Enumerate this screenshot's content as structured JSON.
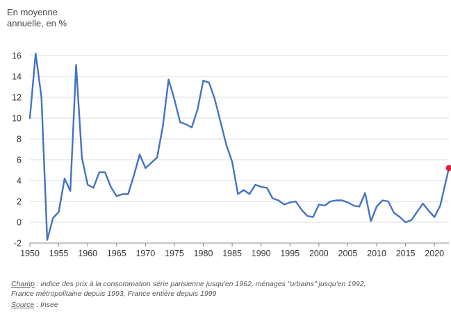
{
  "chart_data": {
    "type": "line",
    "ylabel_lines": [
      "En moyenne",
      "annuelle, en %"
    ],
    "xlim": [
      1950,
      2022.5
    ],
    "ylim": [
      -2,
      16
    ],
    "yticks": [
      -2,
      0,
      2,
      4,
      6,
      8,
      10,
      12,
      14,
      16
    ],
    "xticks": [
      1950,
      1955,
      1960,
      1965,
      1970,
      1975,
      1980,
      1985,
      1990,
      1995,
      2000,
      2005,
      2010,
      2015,
      2020
    ],
    "grid": true,
    "color": "#4472c4",
    "highlight_color": "#e0203a",
    "series": [
      {
        "x": [
          1950,
          1951,
          1952,
          1953,
          1954,
          1955,
          1956,
          1957,
          1958,
          1959,
          1960,
          1961,
          1962,
          1963,
          1964,
          1965,
          1966,
          1967,
          1968,
          1969,
          1970,
          1971,
          1972,
          1973,
          1974,
          1975,
          1976,
          1977,
          1978,
          1979,
          1980,
          1981,
          1982,
          1983,
          1984,
          1985,
          1986,
          1987,
          1988,
          1989,
          1990,
          1991,
          1992,
          1993,
          1994,
          1995,
          1996,
          1997,
          1998,
          1999,
          2000,
          2001,
          2002,
          2003,
          2004,
          2005,
          2006,
          2007,
          2008,
          2009,
          2010,
          2011,
          2012,
          2013,
          2014,
          2015,
          2016,
          2017,
          2018,
          2019,
          2020,
          2021,
          2022.5
        ],
        "y": [
          10.0,
          16.2,
          12.0,
          -1.7,
          0.4,
          1.0,
          4.2,
          3.0,
          15.1,
          6.2,
          3.6,
          3.3,
          4.8,
          4.8,
          3.4,
          2.5,
          2.7,
          2.7,
          4.5,
          6.5,
          5.2,
          5.7,
          6.2,
          9.2,
          13.7,
          11.8,
          9.6,
          9.4,
          9.1,
          10.8,
          13.6,
          13.4,
          11.8,
          9.6,
          7.4,
          5.8,
          2.7,
          3.1,
          2.7,
          3.6,
          3.4,
          3.3,
          2.3,
          2.1,
          1.7,
          1.9,
          2.0,
          1.2,
          0.6,
          0.5,
          1.7,
          1.6,
          2.0,
          2.1,
          2.1,
          1.9,
          1.6,
          1.5,
          2.8,
          0.1,
          1.5,
          2.1,
          2.0,
          0.9,
          0.5,
          0.0,
          0.2,
          1.0,
          1.8,
          1.1,
          0.5,
          1.6,
          5.2
        ]
      }
    ],
    "highlight_point": {
      "x": 2022.5,
      "y": 5.2
    }
  },
  "notes": {
    "champ_label": "Champ",
    "champ_text": " : indice des prix à la consommation série parisienne jusqu'en 1962, ménages \"urbains\" jusqu'en 1992,",
    "champ_text2": "France métropolitaine depuis 1993, France entière depuis 1999",
    "source_label": "Source",
    "source_text": " : Insee"
  }
}
